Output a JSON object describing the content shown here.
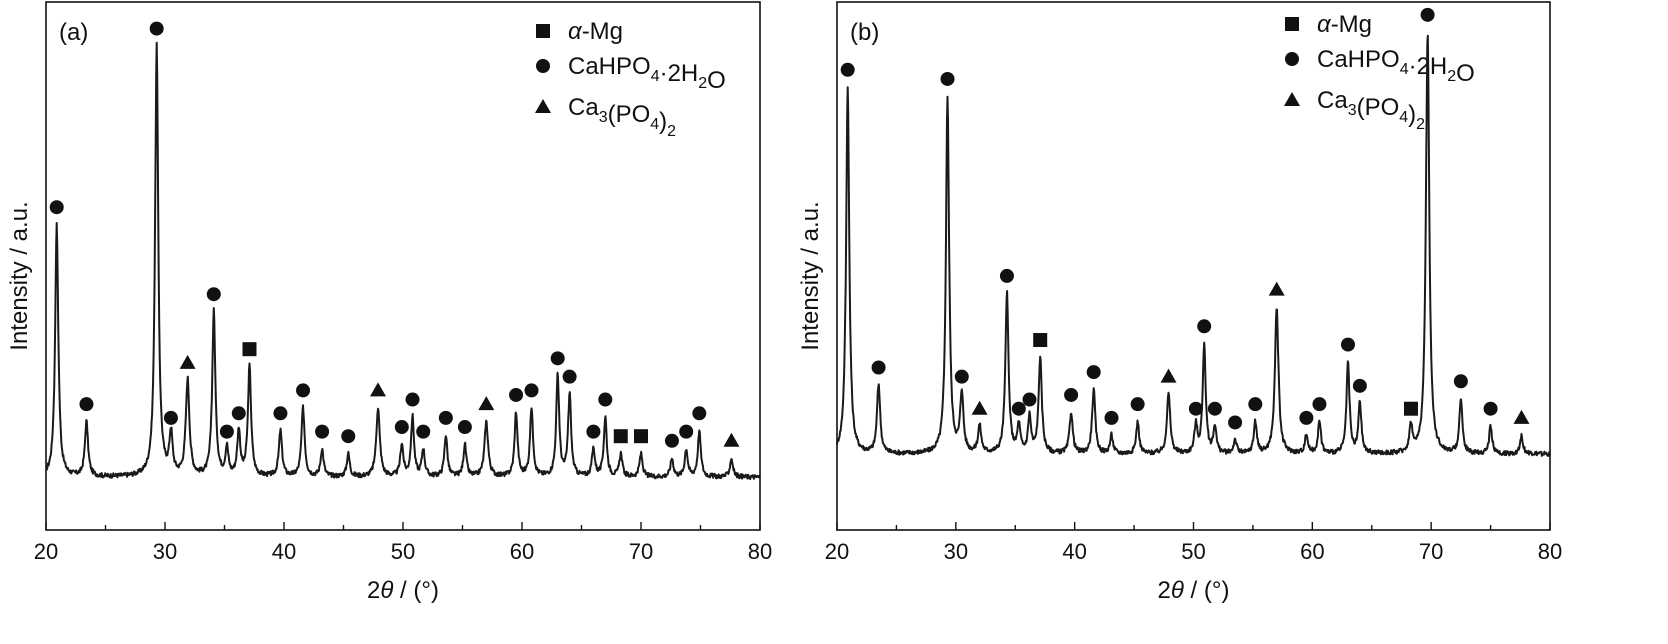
{
  "chart_data": [
    {
      "type": "line",
      "panel_label": "(a)",
      "xlabel_prefix": "2",
      "xlabel_symbol": "θ",
      "xlabel_suffix": " / (°)",
      "ylabel": "Intensity / a.u.",
      "xlim": [
        20,
        80
      ],
      "ylim": [
        0,
        100
      ],
      "xticks": [
        20,
        30,
        40,
        50,
        60,
        70,
        80
      ],
      "xtick_labels": [
        "20",
        "30",
        "40",
        "50",
        "60",
        "70",
        "80"
      ],
      "legend": [
        {
          "marker": "square",
          "prefix": "α",
          "label": "-Mg"
        },
        {
          "marker": "circle",
          "label": "CaHPO4·2H2O"
        },
        {
          "marker": "triangle",
          "label": "Ca3(PO4)2"
        }
      ],
      "baseline": 5,
      "peaks": [
        {
          "x": 20.9,
          "y": 55,
          "w": 0.16,
          "marker": "circle"
        },
        {
          "x": 23.4,
          "y": 12,
          "w": 0.16,
          "marker": "circle"
        },
        {
          "x": 29.3,
          "y": 94,
          "w": 0.16,
          "marker": "circle"
        },
        {
          "x": 30.5,
          "y": 9,
          "w": 0.16,
          "marker": "circle"
        },
        {
          "x": 31.9,
          "y": 21,
          "w": 0.18,
          "marker": "triangle"
        },
        {
          "x": 34.1,
          "y": 36,
          "w": 0.16,
          "marker": "circle"
        },
        {
          "x": 35.2,
          "y": 6,
          "w": 0.15,
          "marker": "circle"
        },
        {
          "x": 36.2,
          "y": 10,
          "w": 0.15,
          "marker": "circle"
        },
        {
          "x": 37.1,
          "y": 24,
          "w": 0.16,
          "marker": "square"
        },
        {
          "x": 39.7,
          "y": 10,
          "w": 0.16,
          "marker": "circle"
        },
        {
          "x": 41.6,
          "y": 15,
          "w": 0.16,
          "marker": "circle"
        },
        {
          "x": 43.2,
          "y": 6,
          "w": 0.15,
          "marker": "circle"
        },
        {
          "x": 45.4,
          "y": 5,
          "w": 0.15,
          "marker": "circle"
        },
        {
          "x": 47.9,
          "y": 15,
          "w": 0.18,
          "marker": "triangle"
        },
        {
          "x": 49.9,
          "y": 7,
          "w": 0.15,
          "marker": "circle"
        },
        {
          "x": 50.8,
          "y": 13,
          "w": 0.15,
          "marker": "circle"
        },
        {
          "x": 51.7,
          "y": 6,
          "w": 0.15,
          "marker": "circle"
        },
        {
          "x": 53.6,
          "y": 9,
          "w": 0.15,
          "marker": "circle"
        },
        {
          "x": 55.2,
          "y": 7,
          "w": 0.15,
          "marker": "circle"
        },
        {
          "x": 57.0,
          "y": 12,
          "w": 0.18,
          "marker": "triangle"
        },
        {
          "x": 59.5,
          "y": 14,
          "w": 0.15,
          "marker": "circle"
        },
        {
          "x": 60.8,
          "y": 15,
          "w": 0.15,
          "marker": "circle"
        },
        {
          "x": 63.0,
          "y": 22,
          "w": 0.15,
          "marker": "circle"
        },
        {
          "x": 64.0,
          "y": 18,
          "w": 0.15,
          "marker": "circle"
        },
        {
          "x": 66.0,
          "y": 6,
          "w": 0.15,
          "marker": "circle"
        },
        {
          "x": 67.0,
          "y": 13,
          "w": 0.15,
          "marker": "circle"
        },
        {
          "x": 68.3,
          "y": 5,
          "w": 0.15,
          "marker": "square"
        },
        {
          "x": 70.0,
          "y": 5,
          "w": 0.15,
          "marker": "square"
        },
        {
          "x": 72.6,
          "y": 4,
          "w": 0.15,
          "marker": "circle"
        },
        {
          "x": 73.8,
          "y": 6,
          "w": 0.15,
          "marker": "circle"
        },
        {
          "x": 74.9,
          "y": 10,
          "w": 0.15,
          "marker": "circle"
        },
        {
          "x": 77.6,
          "y": 4,
          "w": 0.15,
          "marker": "triangle"
        }
      ]
    },
    {
      "type": "line",
      "panel_label": "(b)",
      "xlabel_prefix": "2",
      "xlabel_symbol": "θ",
      "xlabel_suffix": " / (°)",
      "ylabel": "Intensity / a.u.",
      "xlim": [
        20,
        80
      ],
      "ylim": [
        0,
        100
      ],
      "xticks": [
        20,
        30,
        40,
        50,
        60,
        70,
        80
      ],
      "xtick_labels": [
        "20",
        "30",
        "40",
        "50",
        "60",
        "70",
        "80"
      ],
      "legend": [
        {
          "marker": "square",
          "prefix": "α",
          "label": "-Mg"
        },
        {
          "marker": "circle",
          "label": "CaHPO4·2H2O"
        },
        {
          "marker": "triangle",
          "label": "Ca3(PO4)2"
        }
      ],
      "baseline": 10,
      "peaks": [
        {
          "x": 20.9,
          "y": 80,
          "w": 0.16,
          "marker": "circle"
        },
        {
          "x": 23.5,
          "y": 15,
          "w": 0.16,
          "marker": "circle"
        },
        {
          "x": 29.3,
          "y": 78,
          "w": 0.16,
          "marker": "circle"
        },
        {
          "x": 30.5,
          "y": 13,
          "w": 0.16,
          "marker": "circle"
        },
        {
          "x": 32.0,
          "y": 6,
          "w": 0.16,
          "marker": "triangle"
        },
        {
          "x": 34.3,
          "y": 35,
          "w": 0.16,
          "marker": "circle"
        },
        {
          "x": 35.3,
          "y": 6,
          "w": 0.15,
          "marker": "circle"
        },
        {
          "x": 36.2,
          "y": 8,
          "w": 0.15,
          "marker": "circle"
        },
        {
          "x": 37.1,
          "y": 21,
          "w": 0.16,
          "marker": "square"
        },
        {
          "x": 39.7,
          "y": 9,
          "w": 0.16,
          "marker": "circle"
        },
        {
          "x": 41.6,
          "y": 14,
          "w": 0.16,
          "marker": "circle"
        },
        {
          "x": 43.1,
          "y": 4,
          "w": 0.15,
          "marker": "circle"
        },
        {
          "x": 45.3,
          "y": 7,
          "w": 0.15,
          "marker": "circle"
        },
        {
          "x": 47.9,
          "y": 13,
          "w": 0.17,
          "marker": "triangle"
        },
        {
          "x": 50.2,
          "y": 6,
          "w": 0.15,
          "marker": "circle"
        },
        {
          "x": 50.9,
          "y": 24,
          "w": 0.15,
          "marker": "circle"
        },
        {
          "x": 51.8,
          "y": 6,
          "w": 0.15,
          "marker": "circle"
        },
        {
          "x": 53.5,
          "y": 3,
          "w": 0.15,
          "marker": "circle"
        },
        {
          "x": 55.2,
          "y": 7,
          "w": 0.15,
          "marker": "circle"
        },
        {
          "x": 57.0,
          "y": 32,
          "w": 0.18,
          "marker": "triangle"
        },
        {
          "x": 59.5,
          "y": 4,
          "w": 0.15,
          "marker": "circle"
        },
        {
          "x": 60.6,
          "y": 7,
          "w": 0.15,
          "marker": "circle"
        },
        {
          "x": 63.0,
          "y": 20,
          "w": 0.15,
          "marker": "circle"
        },
        {
          "x": 64.0,
          "y": 11,
          "w": 0.15,
          "marker": "circle"
        },
        {
          "x": 68.3,
          "y": 6,
          "w": 0.15,
          "marker": "square"
        },
        {
          "x": 69.7,
          "y": 92,
          "w": 0.17,
          "marker": "circle"
        },
        {
          "x": 72.5,
          "y": 12,
          "w": 0.15,
          "marker": "circle"
        },
        {
          "x": 75.0,
          "y": 6,
          "w": 0.15,
          "marker": "circle"
        },
        {
          "x": 77.6,
          "y": 4,
          "w": 0.15,
          "marker": "triangle"
        }
      ]
    }
  ]
}
